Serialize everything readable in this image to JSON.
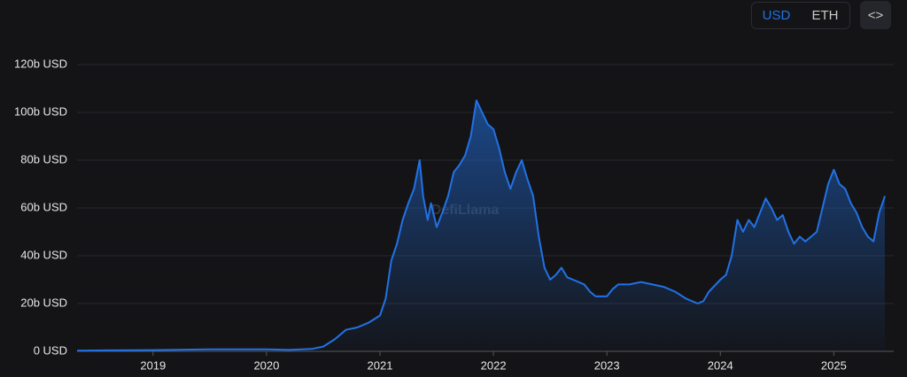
{
  "controls": {
    "currency": [
      "USD",
      "ETH"
    ],
    "embed": "<>"
  },
  "chart_data": {
    "type": "area",
    "watermark": "DefiLlama",
    "x": [
      2018.33,
      2018.6,
      2019,
      2019.5,
      2020,
      2020.2,
      2020.4,
      2020.5,
      2020.6,
      2020.7,
      2020.8,
      2020.9,
      2021,
      2021.05,
      2021.1,
      2021.15,
      2021.2,
      2021.25,
      2021.3,
      2021.35,
      2021.38,
      2021.42,
      2021.45,
      2021.5,
      2021.55,
      2021.6,
      2021.65,
      2021.7,
      2021.75,
      2021.8,
      2021.85,
      2021.9,
      2021.95,
      2022,
      2022.05,
      2022.1,
      2022.15,
      2022.2,
      2022.25,
      2022.3,
      2022.35,
      2022.4,
      2022.45,
      2022.5,
      2022.55,
      2022.6,
      2022.65,
      2022.7,
      2022.75,
      2022.8,
      2022.85,
      2022.9,
      2023,
      2023.05,
      2023.1,
      2023.2,
      2023.3,
      2023.4,
      2023.5,
      2023.6,
      2023.7,
      2023.8,
      2023.85,
      2023.9,
      2024,
      2024.05,
      2024.1,
      2024.15,
      2024.2,
      2024.25,
      2024.3,
      2024.35,
      2024.4,
      2024.45,
      2024.5,
      2024.55,
      2024.6,
      2024.65,
      2024.7,
      2024.75,
      2024.8,
      2024.85,
      2024.9,
      2024.95,
      2025,
      2025.05,
      2025.1,
      2025.15,
      2025.2,
      2025.25,
      2025.3,
      2025.35,
      2025.4,
      2025.43,
      2025.45
    ],
    "series": [
      {
        "color": "#2172e5",
        "values": [
          0.3,
          0.4,
          0.5,
          0.8,
          0.8,
          0.6,
          1,
          2,
          5,
          9,
          10,
          12,
          15,
          22,
          38,
          45,
          55,
          62,
          68,
          80,
          65,
          55,
          62,
          52,
          58,
          65,
          75,
          78,
          82,
          90,
          105,
          100,
          95,
          93,
          85,
          75,
          68,
          75,
          80,
          72,
          65,
          48,
          35,
          30,
          32,
          35,
          31,
          30,
          29,
          28,
          25,
          23,
          23,
          26,
          28,
          28,
          29,
          28,
          27,
          25,
          22,
          20,
          21,
          25,
          30,
          32,
          40,
          55,
          50,
          55,
          52,
          58,
          64,
          60,
          55,
          57,
          50,
          45,
          48,
          46,
          48,
          50,
          60,
          70,
          76,
          70,
          68,
          62,
          58,
          52,
          48,
          46,
          58,
          62,
          65
        ]
      }
    ],
    "xlim": [
      2018.33,
      2025.45
    ],
    "xticks": [
      2019,
      2020,
      2021,
      2022,
      2023,
      2024,
      2025
    ],
    "ylim": [
      0,
      120
    ],
    "yticks": [
      {
        "value": 0,
        "label": "0 USD"
      },
      {
        "value": 20,
        "label": "20b USD"
      },
      {
        "value": 40,
        "label": "40b USD"
      },
      {
        "value": 60,
        "label": "60b USD"
      },
      {
        "value": 80,
        "label": "80b USD"
      },
      {
        "value": 100,
        "label": "100b USD"
      },
      {
        "value": 120,
        "label": "120b USD"
      }
    ],
    "grid": true
  }
}
